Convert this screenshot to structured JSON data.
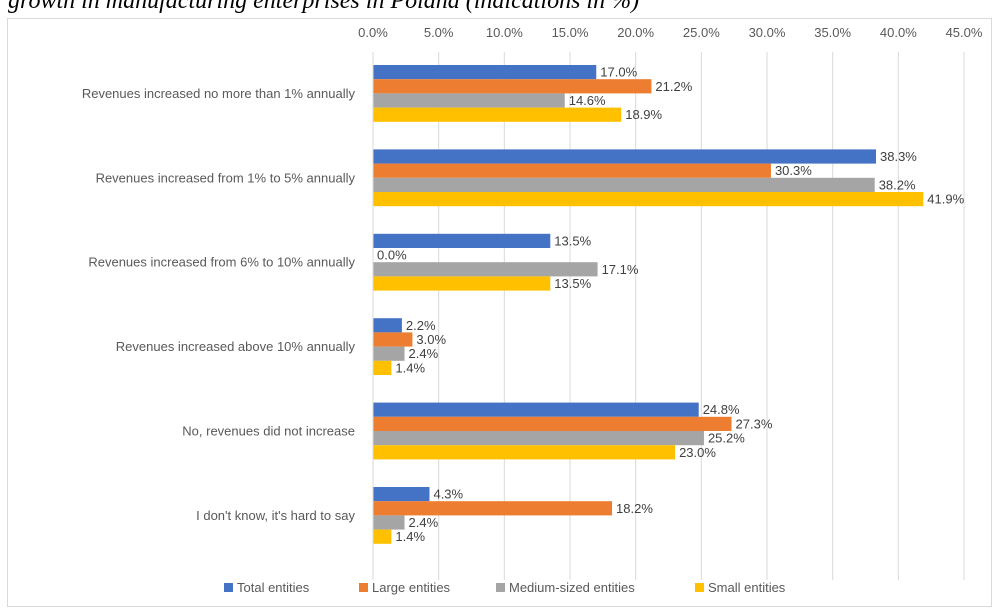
{
  "caption": "growth in manufacturing enterprises in Poland (indications in %)",
  "chart_data": {
    "type": "bar",
    "orientation": "horizontal",
    "title": "",
    "xlim": [
      0,
      45
    ],
    "x_ticks": [
      "0.0%",
      "5.0%",
      "10.0%",
      "15.0%",
      "20.0%",
      "25.0%",
      "30.0%",
      "35.0%",
      "40.0%",
      "45.0%"
    ],
    "x_axis_position": "top",
    "grid": true,
    "legend_position": "bottom",
    "categories": [
      "Revenues increased no more than 1% annually",
      "Revenues increased from 1% to 5% annually",
      "Revenues increased from 6% to 10% annually",
      "Revenues increased above 10% annually",
      "No, revenues did not increase",
      "I don't know, it's hard to say"
    ],
    "series": [
      {
        "name": "Total entities",
        "color": "#4472c4",
        "values": [
          17.0,
          38.3,
          13.5,
          2.2,
          24.8,
          4.3
        ],
        "labels": [
          "17.0%",
          "38.3%",
          "13.5%",
          "2.2%",
          "24.8%",
          "4.3%"
        ]
      },
      {
        "name": "Large entities",
        "color": "#ed7d31",
        "values": [
          21.2,
          30.3,
          0.0,
          3.0,
          27.3,
          18.2
        ],
        "labels": [
          "21.2%",
          "30.3%",
          "0.0%",
          "3.0%",
          "27.3%",
          "18.2%"
        ]
      },
      {
        "name": "Medium-sized entities",
        "color": "#a5a5a5",
        "values": [
          14.6,
          38.2,
          17.1,
          2.4,
          25.2,
          2.4
        ],
        "labels": [
          "14.6%",
          "38.2%",
          "17.1%",
          "2.4%",
          "25.2%",
          "2.4%"
        ]
      },
      {
        "name": "Small entities",
        "color": "#ffc000",
        "values": [
          18.9,
          41.9,
          13.5,
          1.4,
          23.0,
          1.4
        ],
        "labels": [
          "18.9%",
          "41.9%",
          "13.5%",
          "1.4%",
          "23.0%",
          "1.4%"
        ]
      }
    ]
  }
}
